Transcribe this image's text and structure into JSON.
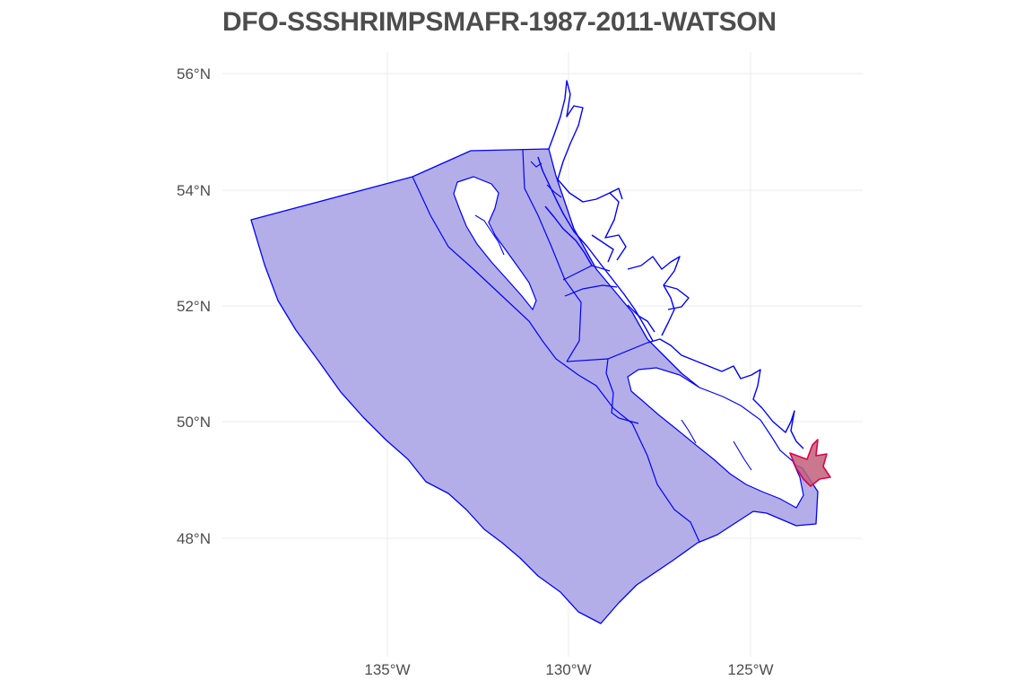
{
  "title": "DFO-SSSHRIMPSMAFR-1987-2011-WATSON",
  "axes": {
    "lat_ticks": [
      {
        "value": 56,
        "label": "56°N"
      },
      {
        "value": 54,
        "label": "54°N"
      },
      {
        "value": 52,
        "label": "52°N"
      },
      {
        "value": 50,
        "label": "50°N"
      },
      {
        "value": 48,
        "label": "48°N"
      }
    ],
    "lon_ticks": [
      {
        "value": -135,
        "label": "135°W"
      },
      {
        "value": -130,
        "label": "130°W"
      },
      {
        "value": -125,
        "label": "125°W"
      }
    ],
    "grid": true
  },
  "colors": {
    "region_fill": "#b3aee8",
    "region_stroke": "#0000ff",
    "highlight_fill": "#c0607a",
    "highlight_stroke": "#e0004a",
    "grid": "#ebebeb"
  }
}
